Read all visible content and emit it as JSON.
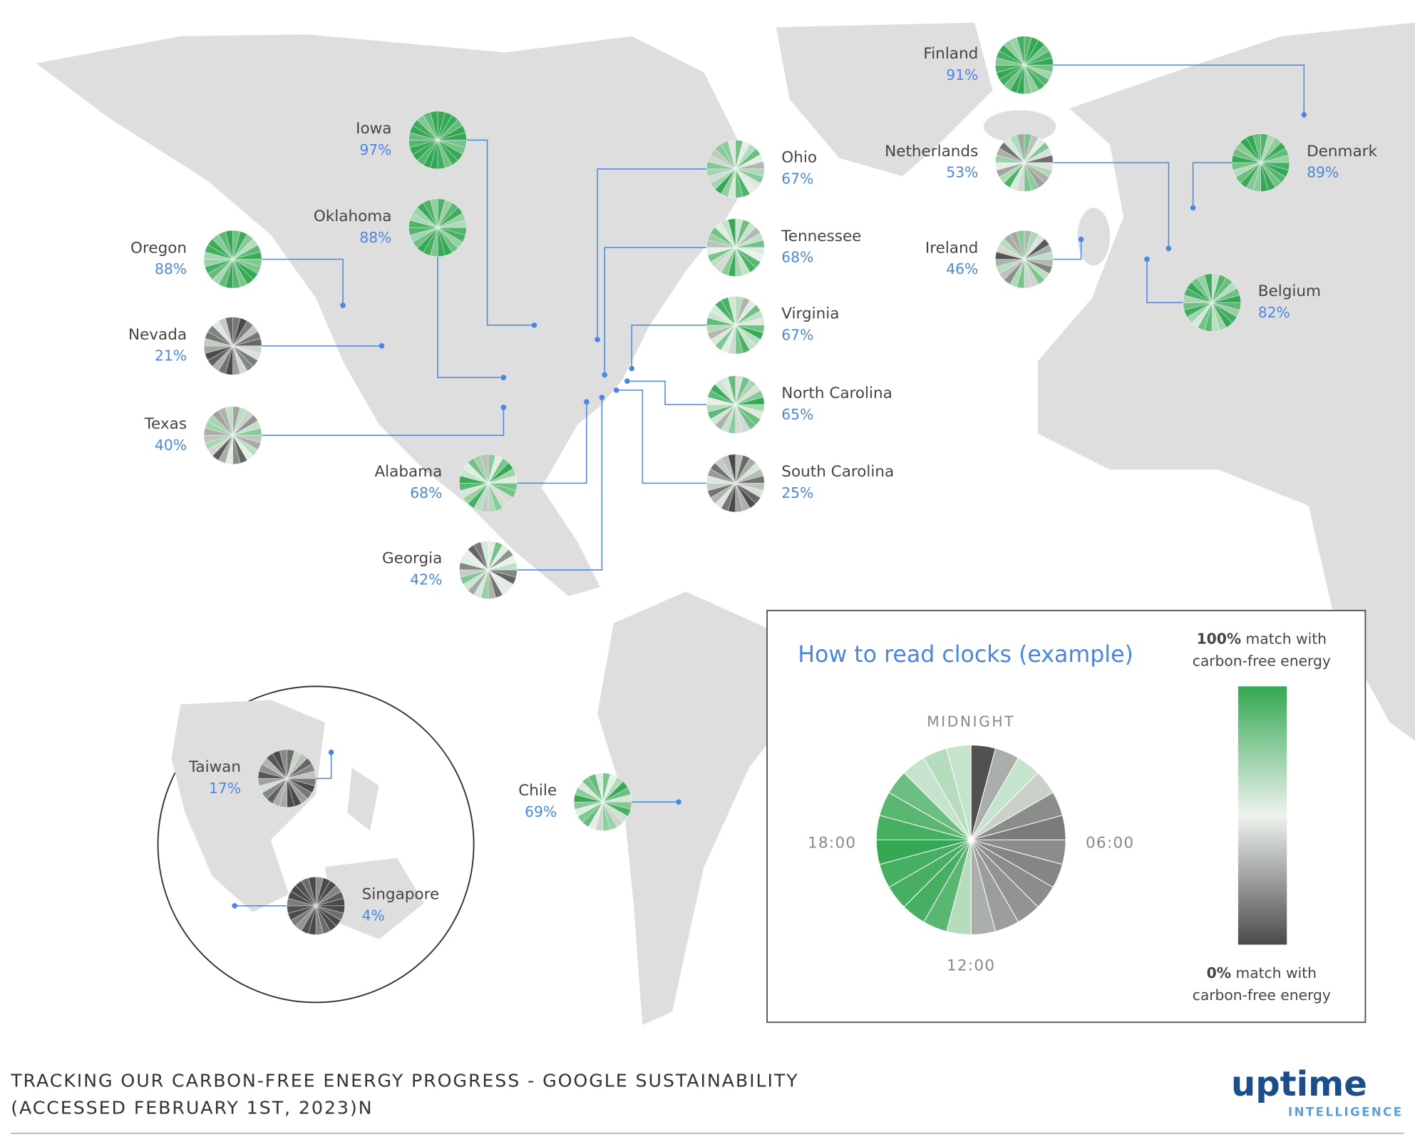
{
  "sites": [
    {
      "name": "Iowa",
      "value": 97,
      "value_label": "97%"
    },
    {
      "name": "Oklahoma",
      "value": 88,
      "value_label": "88%"
    },
    {
      "name": "Oregon",
      "value": 88,
      "value_label": "88%"
    },
    {
      "name": "Nevada",
      "value": 21,
      "value_label": "21%"
    },
    {
      "name": "Texas",
      "value": 40,
      "value_label": "40%"
    },
    {
      "name": "Alabama",
      "value": 68,
      "value_label": "68%"
    },
    {
      "name": "Georgia",
      "value": 42,
      "value_label": "42%"
    },
    {
      "name": "Ohio",
      "value": 67,
      "value_label": "67%"
    },
    {
      "name": "Tennessee",
      "value": 68,
      "value_label": "68%"
    },
    {
      "name": "Virginia",
      "value": 67,
      "value_label": "67%"
    },
    {
      "name": "North Carolina",
      "value": 65,
      "value_label": "65%"
    },
    {
      "name": "South Carolina",
      "value": 25,
      "value_label": "25%"
    },
    {
      "name": "Finland",
      "value": 91,
      "value_label": "91%"
    },
    {
      "name": "Netherlands",
      "value": 53,
      "value_label": "53%"
    },
    {
      "name": "Ireland",
      "value": 46,
      "value_label": "46%"
    },
    {
      "name": "Denmark",
      "value": 89,
      "value_label": "89%"
    },
    {
      "name": "Belgium",
      "value": 82,
      "value_label": "82%"
    },
    {
      "name": "Chile",
      "value": 69,
      "value_label": "69%"
    },
    {
      "name": "Taiwan",
      "value": 17,
      "value_label": "17%"
    },
    {
      "name": "Singapore",
      "value": 4,
      "value_label": "4%"
    }
  ],
  "legend": {
    "title": "How to read clocks (example)",
    "midnight": "MIDNIGHT",
    "t18": "18:00",
    "t06": "06:00",
    "t12": "12:00",
    "top_bold": "100%",
    "top_rest": " match with",
    "top_line2": "carbon-free energy",
    "bottom_bold": "0%",
    "bottom_rest": " match with",
    "bottom_line2": "carbon-free energy"
  },
  "footer": {
    "line1": "TRACKING OUR CARBON-FREE ENERGY PROGRESS - GOOGLE SUSTAINABILITY",
    "line2": "(ACCESSED FEBRUARY 1ST, 2023)N"
  },
  "logo": {
    "word": "uptime",
    "sub": "INTELLIGENCE"
  }
}
